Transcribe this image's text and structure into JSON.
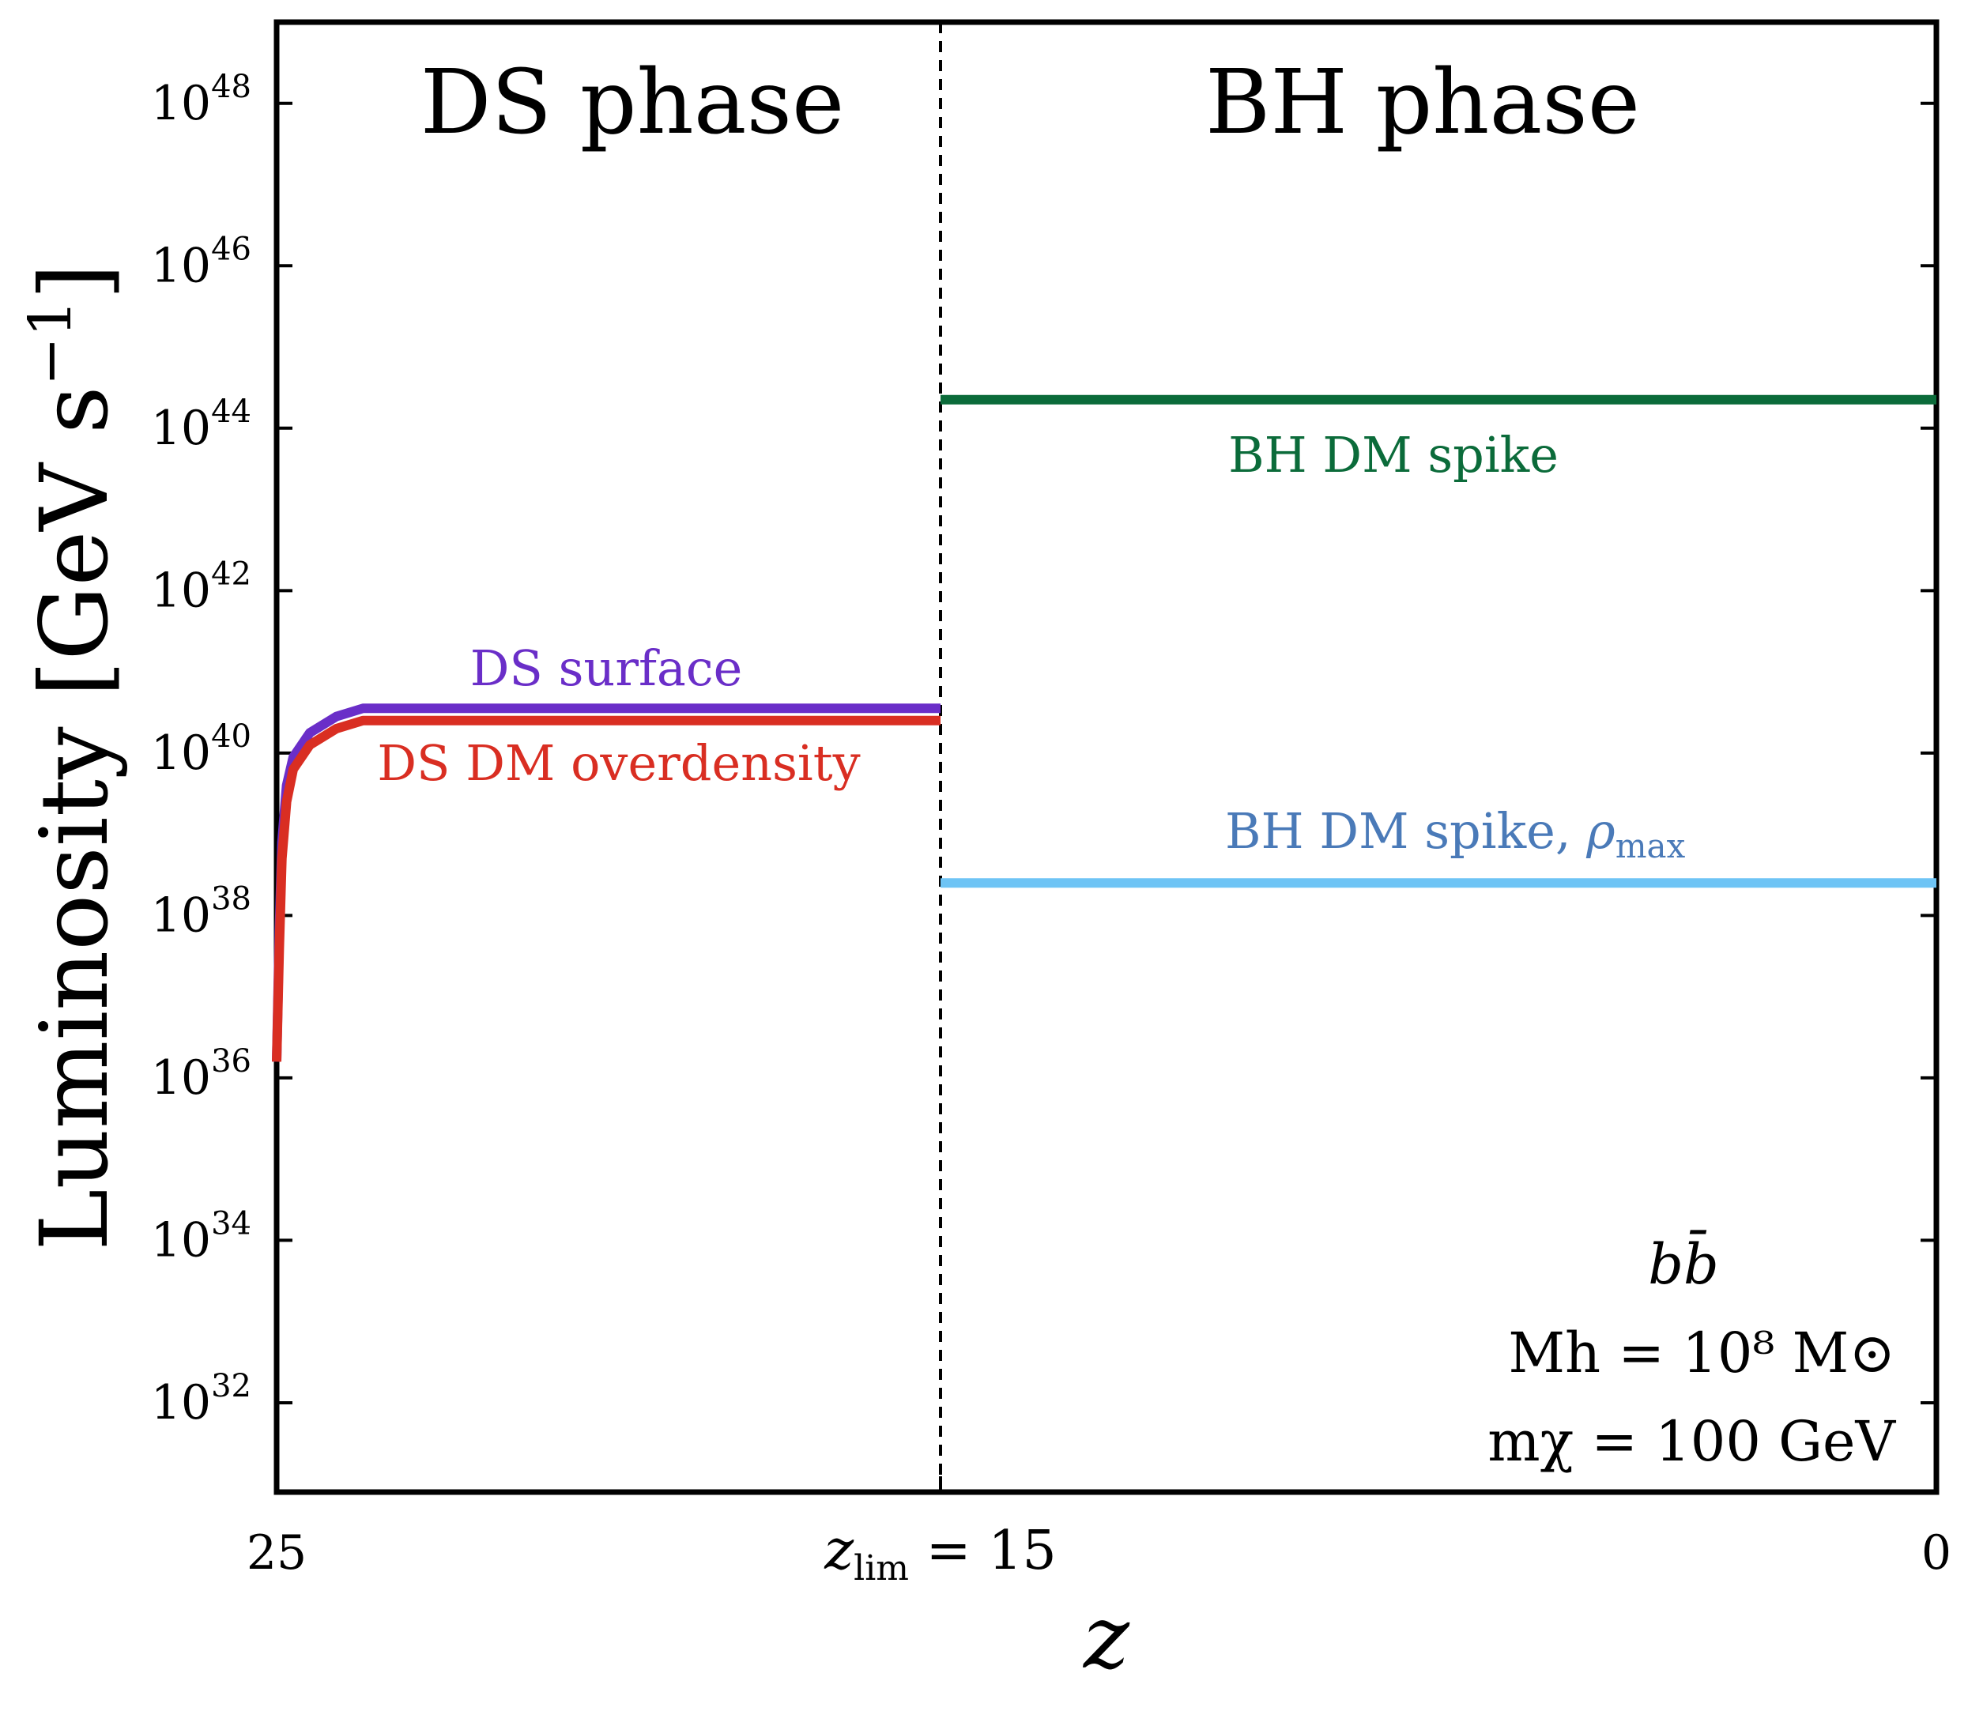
{
  "chart_data": {
    "type": "line",
    "xlabel": "z",
    "ylabel": "Luminosity [GeV s⁻¹]",
    "ylabel_main": "Luminosity [GeV s",
    "ylabel_exp": "−1",
    "ylabel_close": "]",
    "yscale": "log",
    "ylim_log10": [
      30.9,
      49.0
    ],
    "xlim": [
      25,
      0
    ],
    "x_ticks": [
      {
        "value": 25,
        "label": "25"
      },
      {
        "value": 15,
        "label": "z_lim = 15",
        "sym": "z",
        "sub": "lim",
        "rest": " = 15"
      },
      {
        "value": 0,
        "label": "0"
      }
    ],
    "y_ticks": [
      {
        "exp": 32,
        "base": "10",
        "sup": "32"
      },
      {
        "exp": 34,
        "base": "10",
        "sup": "34"
      },
      {
        "exp": 36,
        "base": "10",
        "sup": "36"
      },
      {
        "exp": 38,
        "base": "10",
        "sup": "38"
      },
      {
        "exp": 40,
        "base": "10",
        "sup": "40"
      },
      {
        "exp": 42,
        "base": "10",
        "sup": "42"
      },
      {
        "exp": 44,
        "base": "10",
        "sup": "44"
      },
      {
        "exp": 46,
        "base": "10",
        "sup": "46"
      },
      {
        "exp": 48,
        "base": "10",
        "sup": "48"
      }
    ],
    "phase_divider_z": 15,
    "phase_labels": [
      "DS phase",
      "BH phase"
    ],
    "series": [
      {
        "name": "DS surface",
        "color": "#6a2ec8",
        "points": [
          [
            25.0,
            36.2
          ],
          [
            24.96,
            37.8
          ],
          [
            24.92,
            38.9
          ],
          [
            24.85,
            39.6
          ],
          [
            24.75,
            39.95
          ],
          [
            24.5,
            40.25
          ],
          [
            24.1,
            40.45
          ],
          [
            23.7,
            40.55
          ],
          [
            15.0,
            40.55
          ]
        ]
      },
      {
        "name": "DS DM overdensity",
        "color": "#d92e22",
        "points": [
          [
            25.0,
            36.2
          ],
          [
            24.96,
            37.6
          ],
          [
            24.92,
            38.7
          ],
          [
            24.85,
            39.4
          ],
          [
            24.75,
            39.8
          ],
          [
            24.5,
            40.1
          ],
          [
            24.1,
            40.3
          ],
          [
            23.7,
            40.4
          ],
          [
            15.0,
            40.4
          ]
        ]
      },
      {
        "name": "BH DM spike",
        "color": "#0b6b3a",
        "points": [
          [
            15.0,
            44.35
          ],
          [
            0.0,
            44.35
          ]
        ]
      },
      {
        "name": "BH DM spike, ρmax",
        "color": "#6ec4f5",
        "points": [
          [
            15.0,
            38.4
          ],
          [
            0.0,
            38.4
          ]
        ]
      }
    ],
    "annotations": {
      "ds_surface": "DS surface",
      "ds_overdensity": "DS DM overdensity",
      "bh_spike": "BH DM spike",
      "bh_spike_rho_prefix": "BH DM spike, ",
      "bh_spike_rho_sym": "ρ",
      "bh_spike_rho_sub": "max",
      "bh_spike_rho_color": "#4a7ab8",
      "info_channel": "bb̄",
      "info_mass_halo": "Mh = 10⁸ M⊙",
      "info_mass_dm": "mχ = 100 GeV"
    }
  }
}
